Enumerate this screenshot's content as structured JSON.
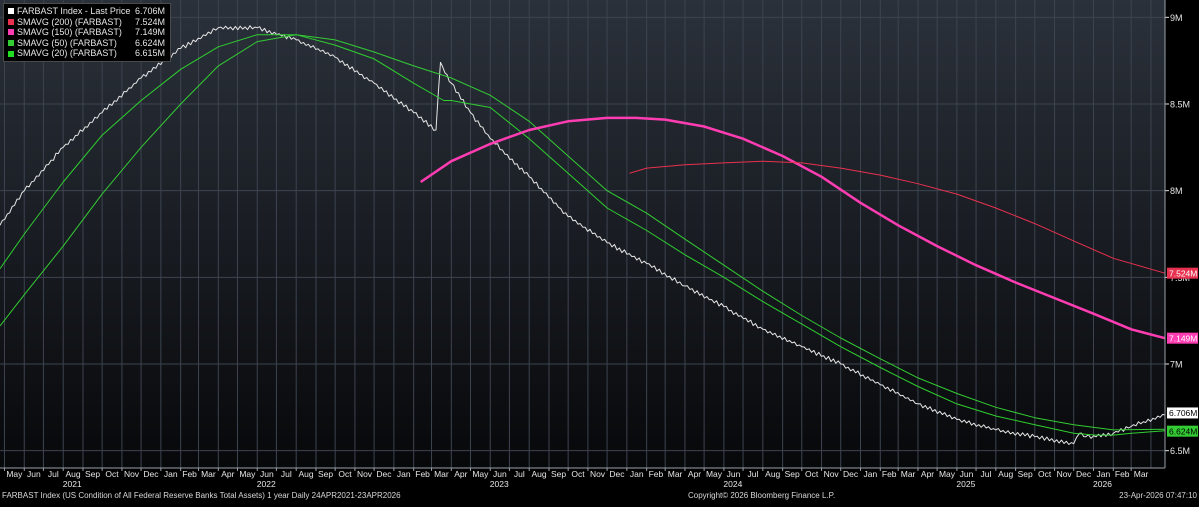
{
  "legend": [
    {
      "label": "FARBAST Index - Last Price",
      "value": "6.706M",
      "color": "#ffffff"
    },
    {
      "label": "SMAVG (200) (FARBAST)",
      "value": "7.524M",
      "color": "#e8314f"
    },
    {
      "label": "SMAVG (150) (FARBAST)",
      "value": "7.149M",
      "color": "#ff3db3"
    },
    {
      "label": "SMAVG (50) (FARBAST)",
      "value": "6.624M",
      "color": "#33cc33"
    },
    {
      "label": "SMAVG (20) (FARBAST)",
      "value": "6.615M",
      "color": "#22dd22"
    }
  ],
  "footer": {
    "left": "FARBAST Index (US Condition of All Federal Reserve Banks Total Assets) 1 year Daily 24APR2021-23APR2026",
    "center": "Copyright© 2026 Bloomberg Finance L.P.",
    "right": "23-Apr-2026 07:47:10"
  },
  "colors": {
    "background": "#000000",
    "panel_top": "#2b313b",
    "panel_bottom": "#07080a",
    "grid": "#3d4450",
    "axis_text": "#e6e6e6"
  },
  "chart_data": {
    "type": "line",
    "x_ticks": [
      "May",
      "Jun",
      "Jul",
      "Aug",
      "Sep",
      "Oct",
      "Nov",
      "Dec",
      "Jan",
      "Feb",
      "Mar",
      "Apr",
      "May",
      "Jun",
      "Jul",
      "Aug",
      "Sep",
      "Oct",
      "Nov",
      "Dec",
      "Jan",
      "Feb",
      "Mar",
      "Apr",
      "May",
      "Jun",
      "Jul",
      "Aug",
      "Sep",
      "Oct",
      "Nov",
      "Dec",
      "Jan",
      "Feb",
      "Mar",
      "Apr",
      "May",
      "Jun",
      "Jul",
      "Aug",
      "Sep",
      "Oct",
      "Nov",
      "Dec",
      "Jan",
      "Feb",
      "Mar",
      "Apr",
      "May",
      "Jun",
      "Jul",
      "Aug",
      "Sep",
      "Oct",
      "Nov",
      "Dec",
      "Jan",
      "Feb",
      "Mar"
    ],
    "x_tick_start": "2021-05",
    "year_labels": [
      {
        "label": "2021",
        "at": "2021-08"
      },
      {
        "label": "2022",
        "at": "2022-06"
      },
      {
        "label": "2023",
        "at": "2023-06"
      },
      {
        "label": "2024",
        "at": "2024-06"
      },
      {
        "label": "2025",
        "at": "2025-06"
      },
      {
        "label": "2026",
        "at": "2026-01"
      }
    ],
    "x_range": [
      "2021-04-24",
      "2026-04-23"
    ],
    "y_range": [
      6.4,
      9.1
    ],
    "y_ticks": [
      {
        "value": 9,
        "label": "9M"
      },
      {
        "value": 8.5,
        "label": "8.5M"
      },
      {
        "value": 8,
        "label": "8M"
      },
      {
        "value": 7.5,
        "label": "7.5M"
      },
      {
        "value": 7,
        "label": "7M"
      },
      {
        "value": 6.5,
        "label": "6.5M"
      }
    ],
    "ylabel": "",
    "xlabel": "",
    "grid": true,
    "legend_position": "top-left",
    "end_labels": [
      {
        "label": "7.524M",
        "value": 7.524,
        "color": "#e8314f",
        "text_color": "#ffffff"
      },
      {
        "label": "7.149M",
        "value": 7.149,
        "color": "#ff3db3",
        "text_color": "#ffffff"
      },
      {
        "label": "6.706M",
        "value": 6.706,
        "color": "#ffffff",
        "text_color": "#000000"
      },
      {
        "label": "6.624M",
        "value": 6.624,
        "color": "#33cc33",
        "text_color": "#000000"
      }
    ],
    "series": [
      {
        "name": "FARBAST Index - Last Price",
        "color": "#e6e6e6",
        "width": 1,
        "jitter": true,
        "x": [
          "2021-04-24",
          "2021-06-01",
          "2021-08-01",
          "2021-10-01",
          "2021-12-01",
          "2022-02-01",
          "2022-04-01",
          "2022-06-01",
          "2022-08-01",
          "2022-10-01",
          "2022-12-01",
          "2023-02-01",
          "2023-03-08",
          "2023-03-15",
          "2023-03-22",
          "2023-04-01",
          "2023-05-01",
          "2023-06-01",
          "2023-08-01",
          "2023-10-01",
          "2023-12-01",
          "2024-02-01",
          "2024-04-01",
          "2024-06-01",
          "2024-08-01",
          "2024-10-01",
          "2024-12-01",
          "2025-02-01",
          "2025-04-01",
          "2025-06-01",
          "2025-08-01",
          "2025-10-01",
          "2025-12-01",
          "2025-12-10",
          "2025-12-20",
          "2026-01-05",
          "2026-02-01",
          "2026-03-01",
          "2026-04-23"
        ],
        "y": [
          7.8,
          8.0,
          8.25,
          8.45,
          8.65,
          8.82,
          8.94,
          8.94,
          8.87,
          8.77,
          8.62,
          8.45,
          8.35,
          8.74,
          8.68,
          8.62,
          8.45,
          8.3,
          8.08,
          7.85,
          7.7,
          7.58,
          7.45,
          7.33,
          7.2,
          7.1,
          7.0,
          6.88,
          6.77,
          6.68,
          6.62,
          6.58,
          6.54,
          6.6,
          6.58,
          6.58,
          6.6,
          6.64,
          6.706
        ]
      },
      {
        "name": "SMAVG (20) (FARBAST)",
        "color": "#2fcf2f",
        "width": 1,
        "x": [
          "2021-04-24",
          "2021-06-01",
          "2021-08-01",
          "2021-10-01",
          "2021-12-01",
          "2022-02-01",
          "2022-04-01",
          "2022-06-01",
          "2022-08-01",
          "2022-10-01",
          "2022-12-01",
          "2023-02-01",
          "2023-03-20",
          "2023-04-01",
          "2023-06-01",
          "2023-08-01",
          "2023-10-01",
          "2023-12-01",
          "2024-02-01",
          "2024-04-01",
          "2024-06-01",
          "2024-08-01",
          "2024-10-01",
          "2024-12-01",
          "2025-02-01",
          "2025-04-01",
          "2025-06-01",
          "2025-08-01",
          "2025-10-01",
          "2025-12-01",
          "2026-01-05",
          "2026-02-01",
          "2026-03-01",
          "2026-04-23"
        ],
        "y": [
          7.55,
          7.75,
          8.05,
          8.32,
          8.52,
          8.7,
          8.83,
          8.9,
          8.9,
          8.84,
          8.76,
          8.62,
          8.52,
          8.52,
          8.48,
          8.3,
          8.1,
          7.9,
          7.77,
          7.63,
          7.5,
          7.36,
          7.23,
          7.1,
          6.98,
          6.87,
          6.77,
          6.7,
          6.65,
          6.6,
          6.59,
          6.59,
          6.6,
          6.615
        ]
      },
      {
        "name": "SMAVG (50) (FARBAST)",
        "color": "#33cc33",
        "width": 1,
        "x": [
          "2021-04-24",
          "2021-06-01",
          "2021-08-01",
          "2021-10-01",
          "2021-12-01",
          "2022-02-01",
          "2022-04-01",
          "2022-06-01",
          "2022-08-01",
          "2022-10-01",
          "2022-12-01",
          "2023-02-01",
          "2023-04-01",
          "2023-06-01",
          "2023-08-01",
          "2023-10-01",
          "2023-12-01",
          "2024-02-01",
          "2024-04-01",
          "2024-06-01",
          "2024-08-01",
          "2024-10-01",
          "2024-12-01",
          "2025-02-01",
          "2025-04-01",
          "2025-06-01",
          "2025-08-01",
          "2025-10-01",
          "2025-12-01",
          "2026-02-01",
          "2026-04-23"
        ],
        "y": [
          7.22,
          7.4,
          7.68,
          7.98,
          8.25,
          8.5,
          8.72,
          8.86,
          8.9,
          8.87,
          8.8,
          8.72,
          8.65,
          8.55,
          8.4,
          8.2,
          8.0,
          7.87,
          7.72,
          7.57,
          7.42,
          7.28,
          7.15,
          7.03,
          6.92,
          6.83,
          6.75,
          6.69,
          6.65,
          6.62,
          6.624
        ]
      },
      {
        "name": "SMAVG (150) (FARBAST)",
        "color": "#ff3db3",
        "width": 2.5,
        "x": [
          "2023-02-12",
          "2023-04-01",
          "2023-06-01",
          "2023-08-01",
          "2023-10-01",
          "2023-12-01",
          "2024-01-15",
          "2024-03-01",
          "2024-05-01",
          "2024-07-01",
          "2024-09-01",
          "2024-11-01",
          "2025-01-01",
          "2025-03-01",
          "2025-05-01",
          "2025-07-01",
          "2025-09-01",
          "2025-11-01",
          "2026-01-01",
          "2026-03-01",
          "2026-04-23"
        ],
        "y": [
          8.05,
          8.17,
          8.27,
          8.35,
          8.4,
          8.42,
          8.42,
          8.41,
          8.37,
          8.3,
          8.2,
          8.08,
          7.93,
          7.8,
          7.68,
          7.57,
          7.47,
          7.38,
          7.29,
          7.2,
          7.149
        ]
      },
      {
        "name": "SMAVG (200) (FARBAST)",
        "color": "#e8314f",
        "width": 1,
        "x": [
          "2024-01-05",
          "2024-02-01",
          "2024-04-01",
          "2024-06-01",
          "2024-08-01",
          "2024-10-01",
          "2024-12-01",
          "2025-02-01",
          "2025-04-01",
          "2025-06-01",
          "2025-08-01",
          "2025-10-01",
          "2025-12-01",
          "2026-02-01",
          "2026-04-23"
        ],
        "y": [
          8.1,
          8.13,
          8.15,
          8.16,
          8.17,
          8.16,
          8.13,
          8.09,
          8.04,
          7.98,
          7.9,
          7.81,
          7.71,
          7.61,
          7.524
        ]
      }
    ]
  }
}
